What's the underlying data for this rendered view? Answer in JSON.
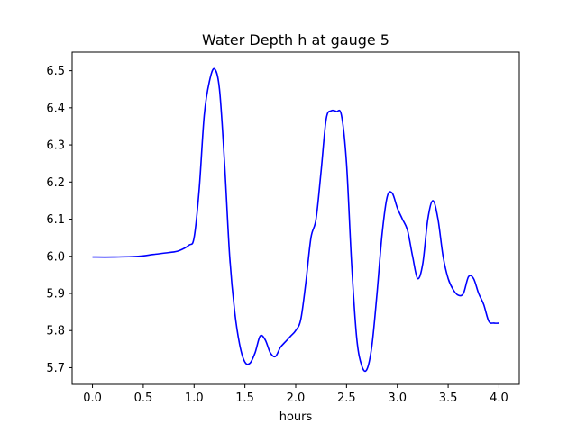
{
  "chart_data": {
    "type": "line",
    "title": "Water Depth h at gauge 5",
    "xlabel": "hours",
    "ylabel": "",
    "xlim": [
      -0.2,
      4.2
    ],
    "ylim": [
      5.655,
      6.55
    ],
    "xticks": [
      "0.0",
      "0.5",
      "1.0",
      "1.5",
      "2.0",
      "2.5",
      "3.0",
      "3.5",
      "4.0"
    ],
    "yticks": [
      "5.7",
      "5.8",
      "5.9",
      "6.0",
      "6.1",
      "6.2",
      "6.3",
      "6.4",
      "6.5"
    ],
    "grid": false,
    "series": [
      {
        "color": "#0000ff",
        "x": [
          0.0,
          0.2,
          0.45,
          0.6,
          0.75,
          0.85,
          0.95,
          1.0,
          1.05,
          1.1,
          1.15,
          1.2,
          1.25,
          1.3,
          1.35,
          1.4,
          1.45,
          1.5,
          1.55,
          1.6,
          1.65,
          1.7,
          1.75,
          1.8,
          1.85,
          1.9,
          1.95,
          2.0,
          2.05,
          2.1,
          2.15,
          2.2,
          2.25,
          2.3,
          2.35,
          2.4,
          2.45,
          2.5,
          2.55,
          2.6,
          2.65,
          2.7,
          2.75,
          2.8,
          2.85,
          2.9,
          2.95,
          3.0,
          3.05,
          3.1,
          3.15,
          3.2,
          3.25,
          3.3,
          3.35,
          3.4,
          3.45,
          3.5,
          3.55,
          3.6,
          3.65,
          3.7,
          3.75,
          3.8,
          3.85,
          3.9,
          3.95,
          4.0
        ],
        "y": [
          5.998,
          5.998,
          6.0,
          6.005,
          6.01,
          6.015,
          6.03,
          6.05,
          6.18,
          6.38,
          6.47,
          6.505,
          6.45,
          6.25,
          6.0,
          5.85,
          5.76,
          5.715,
          5.712,
          5.74,
          5.785,
          5.775,
          5.74,
          5.73,
          5.755,
          5.77,
          5.785,
          5.8,
          5.83,
          5.93,
          6.05,
          6.1,
          6.23,
          6.37,
          6.392,
          6.39,
          6.38,
          6.25,
          5.98,
          5.78,
          5.705,
          5.695,
          5.76,
          5.9,
          6.06,
          6.16,
          6.17,
          6.13,
          6.1,
          6.07,
          6.0,
          5.94,
          5.98,
          6.1,
          6.15,
          6.1,
          6.0,
          5.94,
          5.91,
          5.895,
          5.9,
          5.945,
          5.94,
          5.9,
          5.87,
          5.825,
          5.82,
          5.82
        ]
      }
    ]
  }
}
